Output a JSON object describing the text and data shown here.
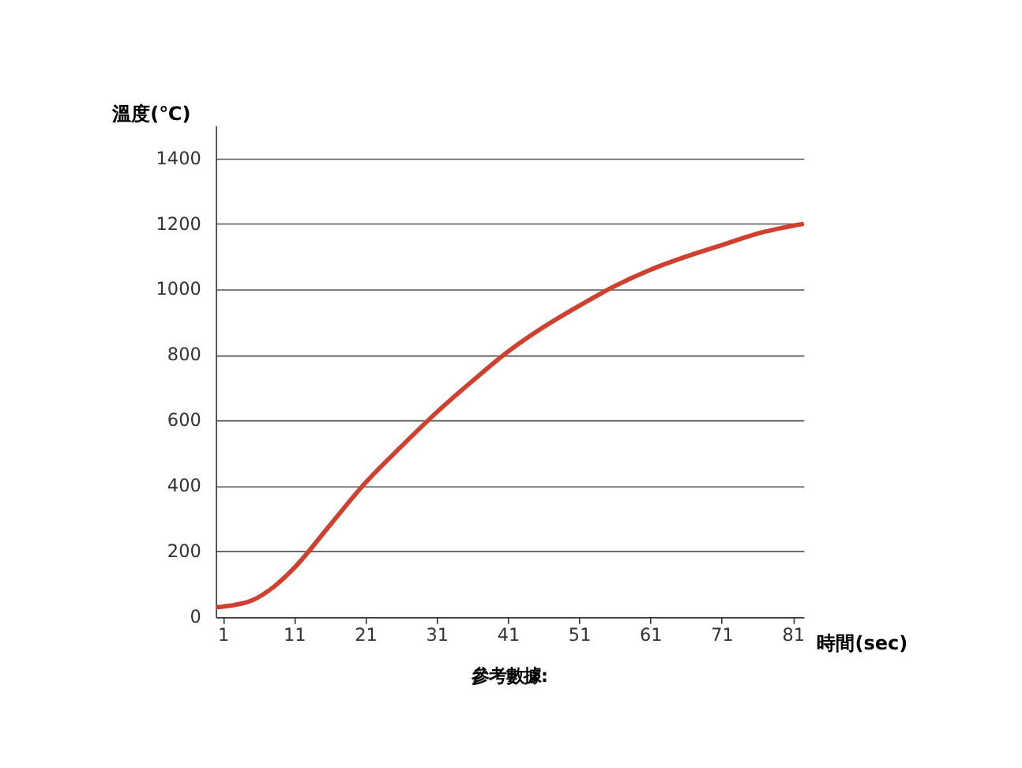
{
  "chart_data": {
    "type": "line",
    "xlabel": "時間(sec)",
    "ylabel": "溫度(℃)",
    "annotations": [
      "參考數據:"
    ],
    "x": [
      0,
      1,
      5,
      8,
      11,
      16,
      21,
      26,
      31,
      36,
      41,
      46,
      51,
      56,
      61,
      66,
      71,
      76,
      82.5
    ],
    "series": [
      {
        "color": "#d0402f",
        "values": [
          30,
          32,
          50,
          90,
          150,
          280,
          410,
          520,
          625,
          720,
          810,
          885,
          950,
          1010,
          1060,
          1100,
          1135,
          1170,
          1200
        ]
      }
    ],
    "xlim": [
      0,
      82.5
    ],
    "ylim": [
      0,
      1500
    ],
    "xticks": [
      1,
      11,
      21,
      31,
      41,
      51,
      61,
      71,
      81
    ],
    "yticks": [
      0,
      200,
      400,
      600,
      800,
      1000,
      1200,
      1400
    ],
    "grid": "y",
    "legend": false,
    "line_style": "solid",
    "marker": "none"
  }
}
